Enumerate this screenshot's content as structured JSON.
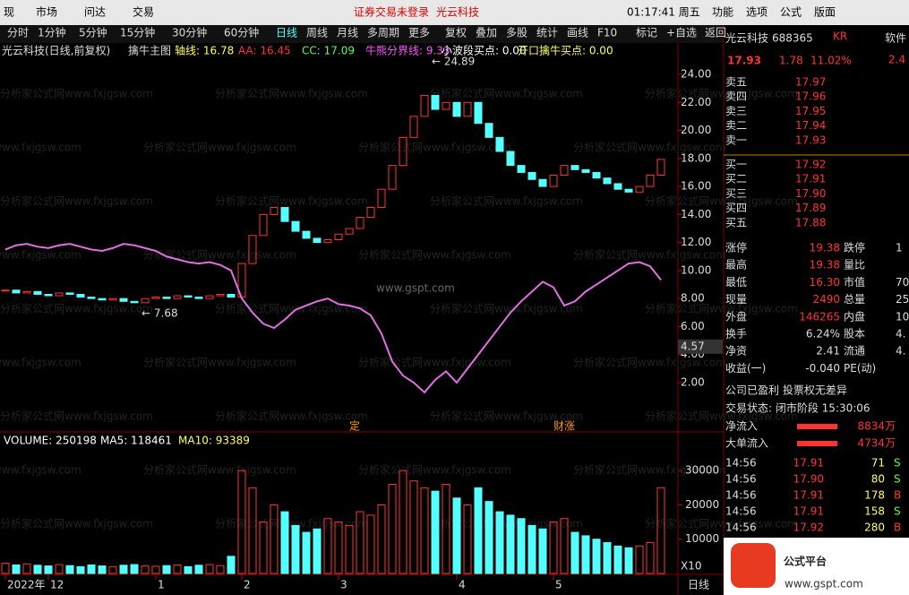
{
  "menu": [
    "现",
    "市场",
    "问达",
    "交易"
  ],
  "notice": "证券交易未登录",
  "notice_stock": "光云科技",
  "clock": "01:17:41 周五",
  "top_right_menu": [
    "功能",
    "选项",
    "公式",
    "版面"
  ],
  "periods": [
    "分时",
    "1分钟",
    "5分钟",
    "15分钟",
    "30分钟",
    "60分钟",
    "日线",
    "周线",
    "月线",
    "多周期",
    "更多"
  ],
  "tools": [
    "复权",
    "叠加",
    "多股",
    "统计",
    "画线",
    "F10",
    "标记",
    "+自选",
    "返回"
  ],
  "title": "光云科技(日线,前复权)",
  "indicator_name": "擒牛主图",
  "indicator_items": [
    {
      "text": "轴线: 16.78",
      "color": "#ffff54"
    },
    {
      "text": "AA: 16.45",
      "color": "#ff3232"
    },
    {
      "text": "CC: 17.09",
      "color": "#54ff54"
    },
    {
      "text": "牛熊分界线: 9.33",
      "color": "#ff54ff"
    },
    {
      "text": "小波段买点: 0.00",
      "color": "#ffffff"
    },
    {
      "text": "开口擒牛买点: 0.00",
      "color": "#ffff54"
    }
  ],
  "watermark": "分析家公式网www.fxjgsw.com",
  "site": "www.gspt.com",
  "price_chart": {
    "ylim": [
      -1.39,
      25.15
    ],
    "yticks": [
      {
        "value": 2,
        "label": "2.00"
      },
      {
        "value": 4,
        "label": "4.00"
      },
      {
        "value": 6,
        "label": "6.00"
      },
      {
        "value": 8,
        "label": "8.00"
      },
      {
        "value": 10,
        "label": "10.00"
      },
      {
        "value": 12,
        "label": "12.00"
      },
      {
        "value": 14,
        "label": "14.00"
      },
      {
        "value": 16,
        "label": "16.00"
      },
      {
        "value": 18,
        "label": "18.00"
      },
      {
        "value": 20,
        "label": "20.00"
      },
      {
        "value": 22,
        "label": "22.00"
      },
      {
        "value": 24,
        "label": "24.00"
      }
    ],
    "closes": [
      8.6,
      8.4,
      8.5,
      8.3,
      8.2,
      8.4,
      8.3,
      8.1,
      8.0,
      7.9,
      8.0,
      7.8,
      7.7,
      8.0,
      8.1,
      8.0,
      8.2,
      8.1,
      8.0,
      8.2,
      8.3,
      8.1,
      10.5,
      12.5,
      14.0,
      14.5,
      13.5,
      12.8,
      12.3,
      12.0,
      12.2,
      12.6,
      13.0,
      13.8,
      14.5,
      15.8,
      17.5,
      19.5,
      21.0,
      22.5,
      21.5,
      22.0,
      21.0,
      22.0,
      20.5,
      19.5,
      18.5,
      17.5,
      17.0,
      16.5,
      16.0,
      16.8,
      17.5,
      17.2,
      17.0,
      16.6,
      16.2,
      15.8,
      15.6,
      16.0,
      16.8,
      17.93
    ],
    "boundary_line": [
      11.5,
      11.8,
      11.9,
      11.7,
      11.6,
      11.8,
      11.9,
      11.7,
      11.5,
      11.4,
      11.6,
      11.9,
      11.8,
      11.6,
      11.4,
      11.0,
      10.8,
      10.6,
      10.5,
      10.6,
      10.4,
      10.0,
      8.0,
      7.0,
      6.2,
      5.9,
      6.5,
      7.2,
      7.5,
      7.8,
      8.0,
      7.6,
      7.5,
      7.3,
      6.8,
      5.5,
      3.5,
      2.5,
      2.0,
      1.3,
      2.2,
      2.8,
      2.0,
      3.0,
      4.0,
      5.0,
      6.0,
      7.0,
      7.8,
      8.5,
      9.2,
      8.8,
      7.5,
      7.8,
      8.5,
      9.0,
      9.5,
      10.0,
      10.5,
      10.6,
      10.3,
      9.33
    ],
    "high_label": "← 24.89",
    "high": 24.89,
    "low_label": "← 7.68",
    "low": 7.68,
    "cursor_label": "4.57",
    "cursor": 4.57,
    "events": [
      {
        "text": "定",
        "index": 32
      },
      {
        "text": "财涨",
        "index": 51
      }
    ]
  },
  "volume_chart": {
    "items": [
      {
        "text": "VOLUME: 250198",
        "color": "#ffffff"
      },
      {
        "text": "MA5: 118461",
        "color": "#ffffff"
      },
      {
        "text": "MA10: 93389",
        "color": "#ffff54"
      }
    ],
    "ylim": [
      0,
      40500
    ],
    "yticks": [
      10000,
      20000,
      30000
    ],
    "multiplier": "X10",
    "values": [
      3000,
      2500,
      2800,
      2400,
      2200,
      2600,
      2300,
      2000,
      2500,
      2200,
      2000,
      2400,
      2600,
      2200,
      2100,
      2300,
      2500,
      2000,
      2400,
      2600,
      2300,
      5000,
      30000,
      25000,
      15000,
      20000,
      18000,
      14000,
      12000,
      13000,
      16000,
      15000,
      14000,
      18000,
      17000,
      20000,
      26000,
      30000,
      27000,
      25000,
      24000,
      26000,
      22000,
      20000,
      25000,
      21000,
      18000,
      17000,
      16000,
      14000,
      13000,
      15000,
      16000,
      12000,
      11000,
      10000,
      9000,
      8000,
      7500,
      8000,
      9000,
      25019
    ]
  },
  "x_labels": [
    {
      "text": "2022年",
      "index": 0
    },
    {
      "text": "12",
      "index": 4
    },
    {
      "text": "1",
      "index": 14
    },
    {
      "text": "2",
      "index": 22
    },
    {
      "text": "3",
      "index": 31
    },
    {
      "text": "4",
      "index": 42
    },
    {
      "text": "5",
      "index": 51
    }
  ],
  "period_label": "日线",
  "quote": {
    "name": "光云科技",
    "code": "688365",
    "tag": "KR",
    "price": "17.93",
    "change": "1.78",
    "pct": "11.02%",
    "side_tab": "软件",
    "side_value": "2.4",
    "asks": [
      [
        "卖五",
        "17.97"
      ],
      [
        "卖四",
        "17.96"
      ],
      [
        "卖三",
        "17.95"
      ],
      [
        "卖二",
        "17.94"
      ],
      [
        "卖一",
        "17.93"
      ]
    ],
    "bids": [
      [
        "买一",
        "17.92"
      ],
      [
        "买二",
        "17.91"
      ],
      [
        "买三",
        "17.90"
      ],
      [
        "买四",
        "17.89"
      ],
      [
        "买五",
        "17.88"
      ]
    ],
    "stats": [
      [
        "涨停",
        "19.38",
        "跌停",
        "1"
      ],
      [
        "最高",
        "19.38",
        "量比",
        ""
      ],
      [
        "最低",
        "16.30",
        "市值",
        "70"
      ],
      [
        "现量",
        "2490",
        "总量",
        "25"
      ],
      [
        "外盘",
        "146265",
        "内盘",
        "10"
      ],
      [
        "换手",
        "6.24%",
        "股本",
        "4."
      ],
      [
        "净资",
        "2.41",
        "流通",
        "4."
      ],
      [
        "收益(一)",
        "-0.040",
        "PE(动)",
        ""
      ]
    ],
    "company": "公司已盈利 投票权无差异",
    "status": "交易状态: 闭市阶段 15:30:06",
    "flows": [
      [
        "净流入",
        "8834万"
      ],
      [
        "大单流入",
        "4734万"
      ]
    ],
    "ticks": [
      [
        "14:56",
        "17.91",
        "71",
        "S"
      ],
      [
        "14:56",
        "17.90",
        "80",
        "S"
      ],
      [
        "14:56",
        "17.91",
        "178",
        "B"
      ],
      [
        "14:56",
        "17.91",
        "158",
        "S"
      ],
      [
        "14:56",
        "17.92",
        "280",
        "B"
      ]
    ]
  },
  "logo": "公式平台"
}
